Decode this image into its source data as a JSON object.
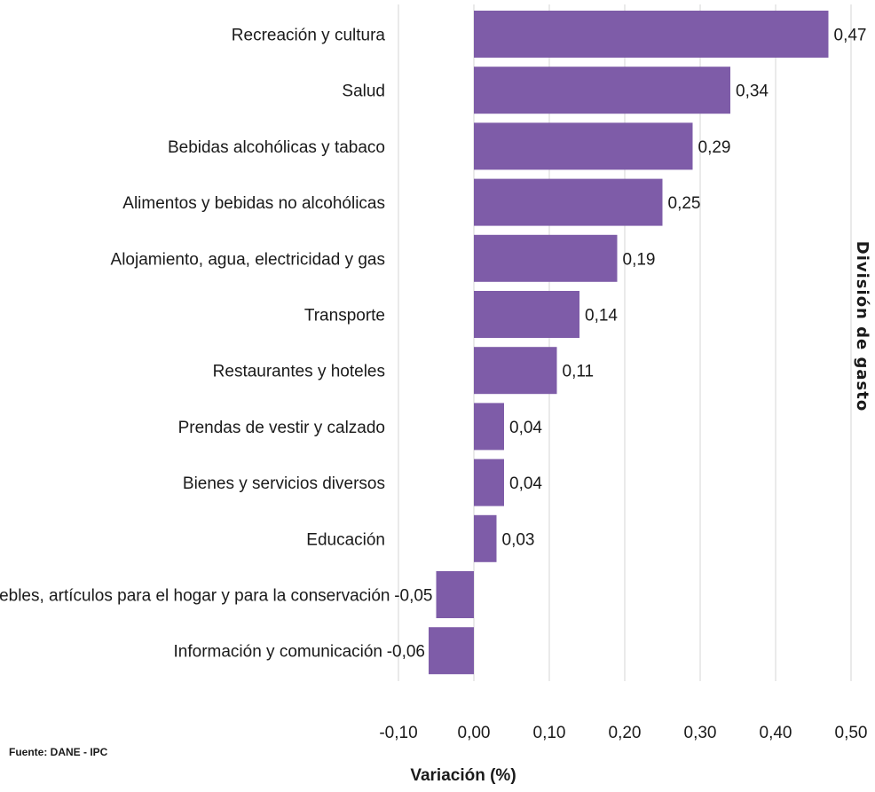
{
  "chart_data": {
    "type": "bar",
    "orientation": "horizontal",
    "categories": [
      "Recreación y cultura",
      "Salud",
      "Bebidas alcohólicas y tabaco",
      "Alimentos y bebidas no alcohólicas",
      "Alojamiento, agua, electricidad y gas",
      "Transporte",
      "Restaurantes y hoteles",
      "Prendas de vestir y calzado",
      "Bienes y servicios diversos",
      "Educación",
      "Muebles, artículos para el hogar y para la conservación",
      "Información y comunicación"
    ],
    "values": [
      0.47,
      0.34,
      0.29,
      0.25,
      0.19,
      0.14,
      0.11,
      0.04,
      0.04,
      0.03,
      -0.05,
      -0.06
    ],
    "value_labels": [
      "0,47",
      "0,34",
      "0,29",
      "0,25",
      "0,19",
      "0,14",
      "0,11",
      "0,04",
      "0,04",
      "0,03",
      "-0,05",
      "-0,06"
    ],
    "xlim": [
      -0.1,
      0.5
    ],
    "xticks": [
      -0.1,
      0.0,
      0.1,
      0.2,
      0.3,
      0.4,
      0.5
    ],
    "xtick_labels": [
      "-0,10",
      "0,00",
      "0,10",
      "0,20",
      "0,30",
      "0,40",
      "0,50"
    ],
    "xlabel": "Variación (%)",
    "ylabel": "División de gasto",
    "grid": true,
    "bar_color": "#7e5ca8"
  },
  "source_note": "Fuente: DANE - IPC"
}
